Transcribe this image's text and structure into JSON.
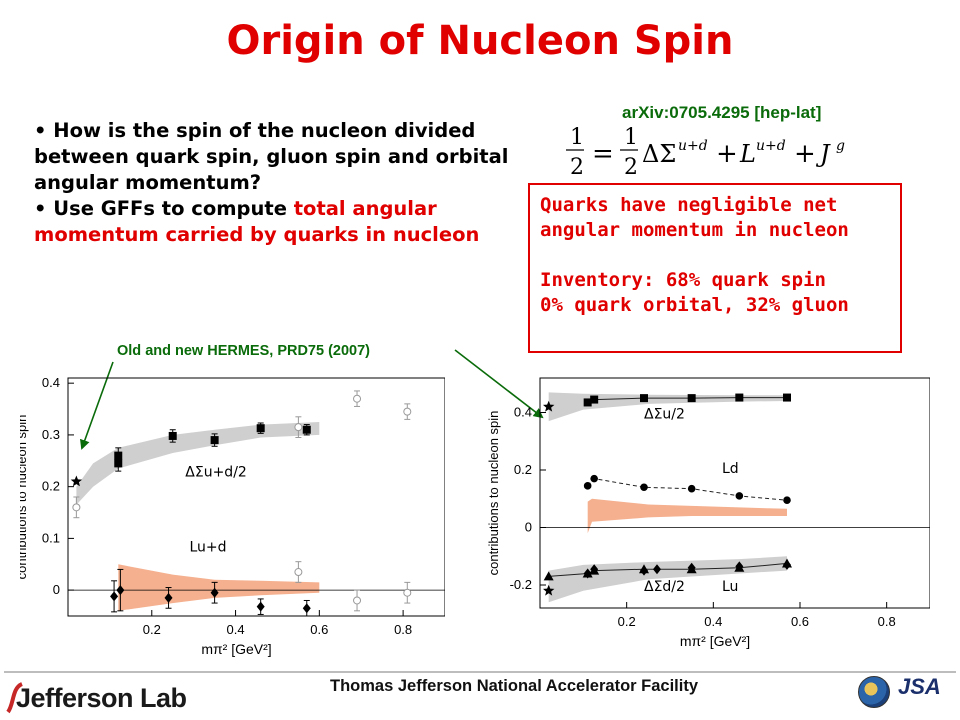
{
  "title": "Origin of Nucleon Spin",
  "bullets": {
    "b1_text": "How is the spin of the nucleon divided between quark spin, gluon spin and orbital angular momentum?",
    "b2_lead": "Use GFFs to compute ",
    "b2_red": "total angular momentum carried by quarks in nucleon"
  },
  "arxiv": "arXiv:0705.4295 [hep-lat]",
  "formula": {
    "half": "1",
    "two": "2",
    "delta_sigma": "ΔΣ",
    "sup_ud": "u+d",
    "L": "L",
    "J": "J",
    "sup_g": "g"
  },
  "redbox": {
    "line1": "Quarks have negligible net",
    "line2": "angular momentum in nucleon",
    "line3": "Inventory: 68% quark spin",
    "line4": "0% quark orbital, 32% gluon"
  },
  "hermes_label": "Old and new HERMES, PRD75 (2007)",
  "footer": {
    "logo": "Jefferson Lab",
    "facility": "Thomas Jefferson National Accelerator Facility",
    "jsa": "JSA"
  },
  "colors": {
    "title_red": "#e00000",
    "green": "#0a6b0a",
    "gray_band": "#cfcfcf",
    "orange_band": "#f5b08f"
  },
  "chart_data": [
    {
      "type": "scatter",
      "ylabel": "contributions to nucleon spin",
      "xlabel": "mπ² [GeV²]",
      "xticks": [
        "0.2",
        "0.4",
        "0.6",
        "0.8"
      ],
      "yticks": [
        "0",
        "0.1",
        "0.2",
        "0.3",
        "0.4"
      ],
      "xlim": [
        0,
        0.9
      ],
      "ylim": [
        -0.05,
        0.41
      ],
      "grid": false,
      "annotations": [
        "ΔΣu+d/2",
        "Lu+d"
      ],
      "series": [
        {
          "name": "ΔΣu+d/2",
          "marker": "square",
          "x": [
            0.12,
            0.12,
            0.25,
            0.35,
            0.46,
            0.57
          ],
          "y": [
            0.245,
            0.26,
            0.298,
            0.29,
            0.313,
            0.31
          ],
          "err": [
            0.015,
            0.015,
            0.012,
            0.012,
            0.01,
            0.01
          ]
        },
        {
          "name": "Lu+d",
          "marker": "diamond",
          "x": [
            0.11,
            0.125,
            0.24,
            0.35,
            0.46,
            0.57
          ],
          "y": [
            -0.012,
            0.0,
            -0.015,
            -0.005,
            -0.032,
            -0.035
          ],
          "err": [
            0.03,
            0.04,
            0.02,
            0.02,
            0.015,
            0.015
          ]
        },
        {
          "name": "HERMES",
          "marker": "star",
          "x": [
            0.02
          ],
          "y": [
            0.21
          ],
          "err": [
            0
          ]
        },
        {
          "name": "open",
          "marker": "open",
          "x": [
            0.02,
            0.55,
            0.69,
            0.81,
            0.55,
            0.69,
            0.81
          ],
          "y": [
            0.16,
            0.315,
            0.37,
            0.345,
            0.035,
            -0.02,
            -0.005
          ],
          "err": [
            0.02,
            0.02,
            0.015,
            0.015,
            0.02,
            0.02,
            0.02
          ]
        }
      ]
    },
    {
      "type": "scatter",
      "ylabel": "contributions to nucleon spin",
      "xlabel": "mπ² [GeV²]",
      "xticks": [
        "0.2",
        "0.4",
        "0.6",
        "0.8"
      ],
      "yticks": [
        "-0.2",
        "0",
        "0.2",
        "0.4"
      ],
      "xlim": [
        0,
        0.9
      ],
      "ylim": [
        -0.28,
        0.52
      ],
      "grid": false,
      "annotations": [
        "ΔΣu/2",
        "Ld",
        "ΔΣd/2",
        "Lu"
      ],
      "series": [
        {
          "name": "ΔΣu/2",
          "marker": "square",
          "x": [
            0.11,
            0.125,
            0.24,
            0.35,
            0.46,
            0.57
          ],
          "y": [
            0.435,
            0.445,
            0.45,
            0.45,
            0.452,
            0.452
          ]
        },
        {
          "name": "Ld",
          "marker": "circle",
          "x": [
            0.11,
            0.125,
            0.24,
            0.35,
            0.46,
            0.57
          ],
          "y": [
            0.145,
            0.17,
            0.14,
            0.135,
            0.11,
            0.095
          ]
        },
        {
          "name": "Lu",
          "marker": "triangle",
          "x": [
            0.02,
            0.11,
            0.125,
            0.24,
            0.35,
            0.46,
            0.57
          ],
          "y": [
            -0.17,
            -0.16,
            -0.15,
            -0.145,
            -0.145,
            -0.14,
            -0.125
          ]
        },
        {
          "name": "ΔΣd/2",
          "marker": "diamond",
          "x": [
            0.11,
            0.125,
            0.24,
            0.27,
            0.35,
            0.46,
            0.57
          ],
          "y": [
            -0.16,
            -0.145,
            -0.15,
            -0.145,
            -0.14,
            -0.135,
            -0.13
          ]
        },
        {
          "name": "HERMES",
          "marker": "star",
          "x": [
            0.02,
            0.02
          ],
          "y": [
            0.42,
            -0.22
          ]
        }
      ]
    }
  ]
}
